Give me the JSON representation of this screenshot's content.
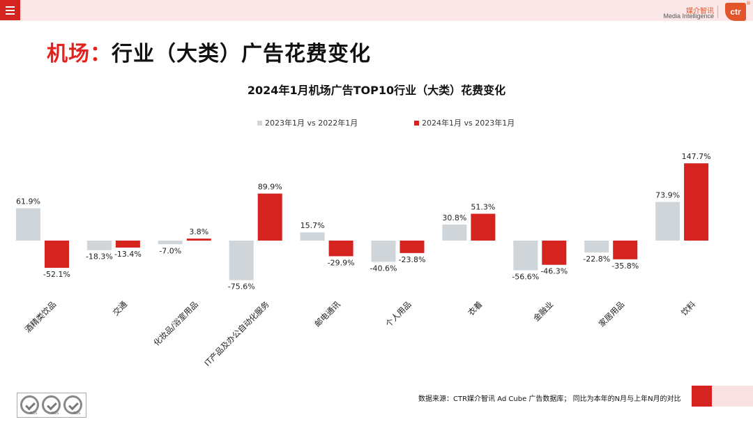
{
  "header": {
    "menu_icon": "menu-icon",
    "logo_cn": "媒介智讯",
    "logo_en": "Media Intelligence",
    "logo_badge": "ctr",
    "logo_reg": "®"
  },
  "page": {
    "title_accent": "机场：",
    "title_rest": "行业（大类）广告花费变化"
  },
  "footer": {
    "source": "数据来源：CTR媒介智讯 Ad Cube 广告数据库；  同比为本年的N月与上年N月的对比",
    "cert_labels": [
      "SGS",
      "SGS",
      "SGS"
    ]
  },
  "chart_data": {
    "type": "bar",
    "title": "2024年1月机场广告TOP10行业（大类）花费变化",
    "categories": [
      "酒精类饮品",
      "交通",
      "化妆品/浴室用品",
      "IT产品及办公自动化服务",
      "邮电通讯",
      "个人用品",
      "衣着",
      "金融业",
      "家居用品",
      "饮料"
    ],
    "series": [
      {
        "name": "2023年1月 vs 2022年1月",
        "color": "#cfd5d8",
        "values": [
          61.9,
          -18.3,
          -7.0,
          -75.6,
          15.7,
          -40.6,
          30.8,
          -56.6,
          -22.8,
          73.9
        ]
      },
      {
        "name": "2024年1月 vs 2023年1月",
        "color": "#d5231f",
        "values": [
          -52.1,
          -13.4,
          3.8,
          89.9,
          -29.9,
          -23.8,
          51.3,
          -46.3,
          -35.8,
          147.7
        ]
      }
    ],
    "value_format": "percent_1dp",
    "legend_position": "top",
    "grid": false,
    "ylim": [
      -80,
      150
    ]
  }
}
